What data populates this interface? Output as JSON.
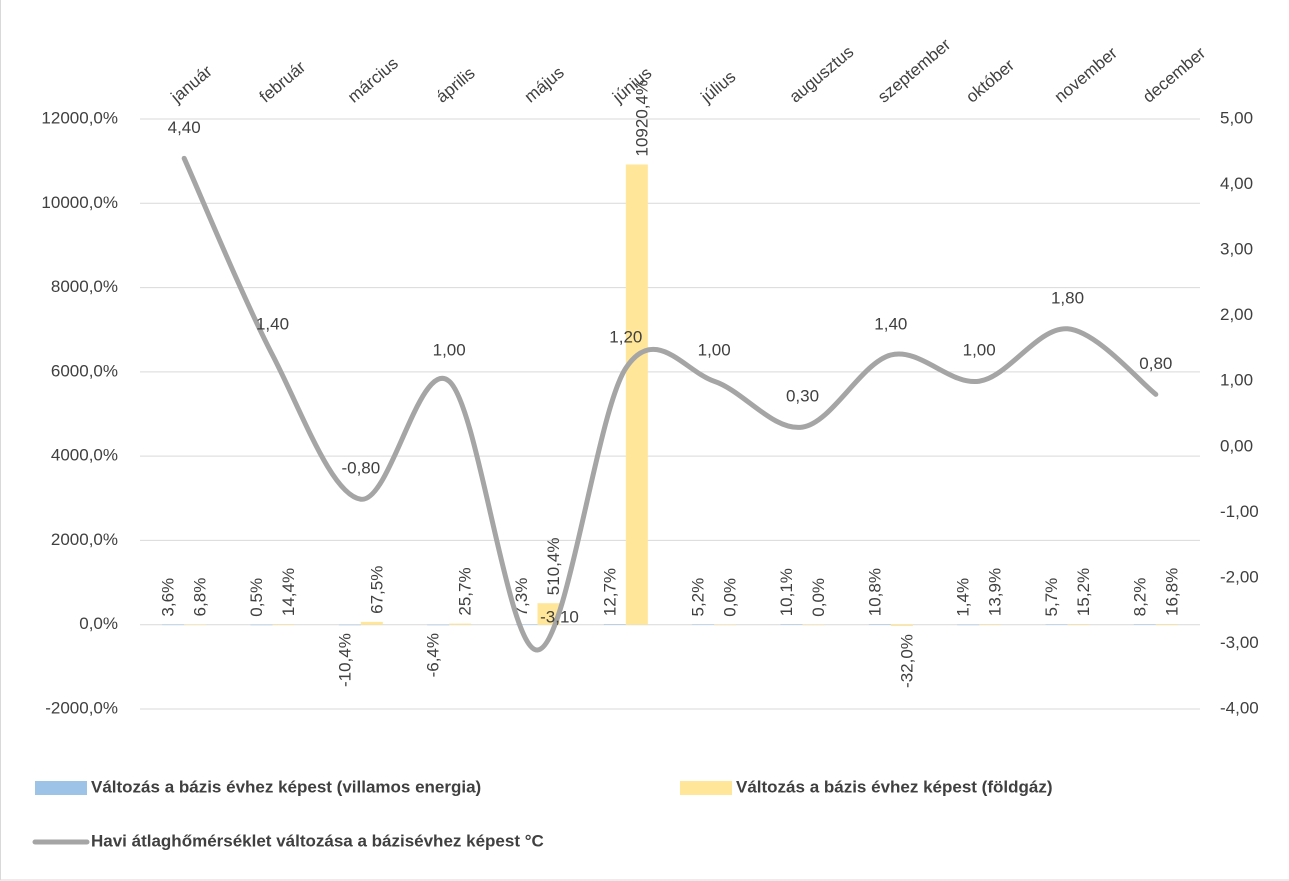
{
  "chart_data": {
    "type": "bar-line",
    "categories": [
      "január",
      "február",
      "március",
      "április",
      "május",
      "június",
      "július",
      "augusztus",
      "szeptember",
      "október",
      "november",
      "december"
    ],
    "series": [
      {
        "name": "Változás a bázis évhez képest (villamos energia)",
        "color": "#9dc3e6",
        "type": "bar",
        "values": [
          3.6,
          0.5,
          -10.4,
          -6.4,
          7.3,
          12.7,
          5.2,
          10.1,
          10.8,
          1.4,
          5.7,
          8.2
        ],
        "value_labels": [
          "3,6%",
          "0,5%",
          "-10,4%",
          "-6,4%",
          "7,3%",
          "12,7%",
          "5,2%",
          "10,1%",
          "10,8%",
          "1,4%",
          "5,7%",
          "8,2%"
        ]
      },
      {
        "name": "Változás a bázis évhez képest (földgáz)",
        "color": "#ffe699",
        "type": "bar",
        "values": [
          6.8,
          14.4,
          67.5,
          25.7,
          510.4,
          10920.4,
          0.0,
          0.0,
          -32.0,
          13.9,
          15.2,
          16.8
        ],
        "value_labels": [
          "6,8%",
          "14,4%",
          "67,5%",
          "25,7%",
          "510,4%",
          "10920,4%",
          "0,0%",
          "0,0%",
          "-32,0%",
          "13,9%",
          "15,2%",
          "16,8%"
        ]
      },
      {
        "name": "Havi átlaghőmérséklet változása a bázisévhez képest °C",
        "color": "#a5a5a5",
        "type": "line",
        "axis": "y2",
        "values": [
          4.4,
          1.4,
          -0.8,
          1.0,
          -3.1,
          1.2,
          1.0,
          0.3,
          1.4,
          1.0,
          1.8,
          0.8
        ],
        "value_labels": [
          "4,40",
          "1,40",
          "-0,80",
          "1,00",
          "-3,10",
          "1,20",
          "1,00",
          "0,30",
          "1,40",
          "1,00",
          "1,80",
          "0,80"
        ]
      }
    ],
    "ylim": [
      -2000,
      12000
    ],
    "yticks": [
      {
        "value": -2000,
        "label": "-2000,0%"
      },
      {
        "value": 0,
        "label": "0,0%"
      },
      {
        "value": 2000,
        "label": "2000,0%"
      },
      {
        "value": 4000,
        "label": "4000,0%"
      },
      {
        "value": 6000,
        "label": "6000,0%"
      },
      {
        "value": 8000,
        "label": "8000,0%"
      },
      {
        "value": 10000,
        "label": "10000,0%"
      },
      {
        "value": 12000,
        "label": "12000,0%"
      }
    ],
    "y2lim": [
      -4,
      5
    ],
    "y2ticks": [
      {
        "value": -4,
        "label": "-4,00"
      },
      {
        "value": -3,
        "label": "-3,00"
      },
      {
        "value": -2,
        "label": "-2,00"
      },
      {
        "value": -1,
        "label": "-1,00"
      },
      {
        "value": 0,
        "label": "0,00"
      },
      {
        "value": 1,
        "label": "1,00"
      },
      {
        "value": 2,
        "label": "2,00"
      },
      {
        "value": 3,
        "label": "3,00"
      },
      {
        "value": 4,
        "label": "4,00"
      },
      {
        "value": 5,
        "label": "5,00"
      }
    ],
    "grid": true
  }
}
